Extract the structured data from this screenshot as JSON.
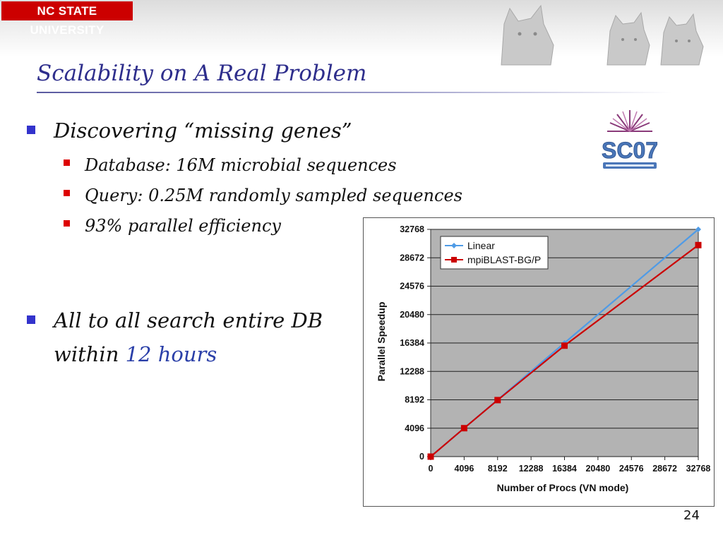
{
  "header": {
    "logo_text": "NC STATE UNIVERSITY"
  },
  "slide": {
    "title": "Scalability on A Real Problem",
    "bullets": [
      {
        "text": "Discovering “missing genes”",
        "sub": [
          "Database: 16M microbial sequences",
          "Query: 0.25M randomly sampled sequences",
          "93% parallel efficiency"
        ]
      },
      {
        "line1": "All to all search entire DB",
        "line2_prefix": "within ",
        "line2_highlight": "12 hours"
      }
    ],
    "page_number": "24"
  },
  "colors": {
    "title": "#2e2e8c",
    "accent": "#2a3fa8",
    "logo_bg": "#cc0000",
    "linear_series": "#4f9be6",
    "mpiblast_series": "#cc0000",
    "plot_bg": "#b3b3b3"
  },
  "chart_data": {
    "type": "line",
    "title": "",
    "xlabel": "Number of Procs (VN mode)",
    "ylabel": "Parallel Speedup",
    "xlim": [
      0,
      32768
    ],
    "ylim": [
      0,
      32768
    ],
    "xticks": [
      0,
      4096,
      8192,
      12288,
      16384,
      20480,
      24576,
      28672,
      32768
    ],
    "yticks": [
      0,
      4096,
      8192,
      12288,
      16384,
      20480,
      24576,
      28672,
      32768
    ],
    "grid": "horizontal",
    "legend_position": "top-left",
    "series": [
      {
        "name": "Linear",
        "marker": "diamond",
        "x": [
          0,
          4096,
          8192,
          16384,
          32768
        ],
        "y": [
          0,
          4096,
          8192,
          16384,
          32768
        ]
      },
      {
        "name": "mpiBLAST-BG/P",
        "marker": "square",
        "x": [
          0,
          4096,
          8192,
          16384,
          32768
        ],
        "y": [
          0,
          4100,
          8150,
          16000,
          30500
        ]
      }
    ]
  }
}
